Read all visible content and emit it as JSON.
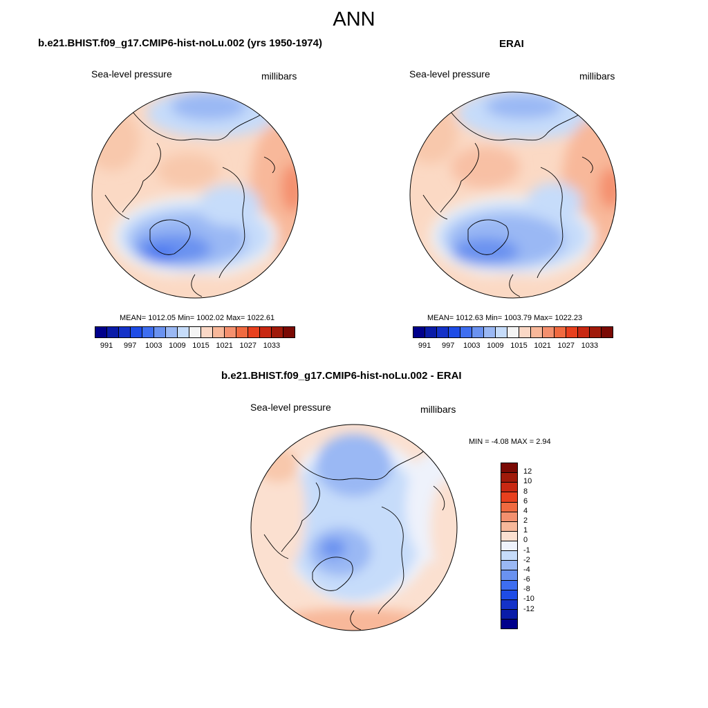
{
  "figure": {
    "title": "ANN"
  },
  "panels": {
    "model": {
      "title": "b.e21.BHIST.f09_g17.CMIP6-hist-noLu.002 (yrs 1950-1974)",
      "left_label": "Sea-level pressure",
      "right_label": "millibars",
      "stats": "MEAN= 1012.05  Min= 1002.02  Max= 1022.61"
    },
    "obs": {
      "title": "ERAI",
      "left_label": "Sea-level pressure",
      "right_label": "millibars",
      "stats": "MEAN= 1012.63  Min= 1003.79  Max= 1022.23"
    },
    "diff": {
      "title": "b.e21.BHIST.f09_g17.CMIP6-hist-noLu.002 - ERAI",
      "left_label": "Sea-level pressure",
      "right_label": "millibars",
      "stats": "MIN =  -4.08 MAX =   2.94"
    }
  },
  "colorbars": {
    "absolute": {
      "tick_labels": [
        "991",
        "997",
        "1003",
        "1009",
        "1015",
        "1021",
        "1027",
        "1033"
      ],
      "colors": [
        "#00008b",
        "#0a1ca8",
        "#1432c8",
        "#1e4ce6",
        "#3e6ef0",
        "#6a92f0",
        "#9ab8f4",
        "#c6dcfa",
        "#f4f4f4",
        "#fad8c6",
        "#f8b89a",
        "#f4906e",
        "#f06a40",
        "#e8401e",
        "#c82812",
        "#a01a0a",
        "#7a0a04"
      ]
    },
    "difference": {
      "tick_labels": [
        "12",
        "10",
        "8",
        "6",
        "4",
        "2",
        "1",
        "0",
        "-1",
        "-2",
        "-4",
        "-6",
        "-8",
        "-10",
        "-12"
      ],
      "colors": [
        "#7a0a04",
        "#a01a0a",
        "#c82812",
        "#e8401e",
        "#f06a40",
        "#f4906e",
        "#f8b89a",
        "#fbe0d0",
        "#eef2fb",
        "#c6dcfa",
        "#9ab8f4",
        "#6a92f0",
        "#3e6ef0",
        "#1e4ce6",
        "#1432c8",
        "#0a1ca8",
        "#00008b"
      ]
    }
  }
}
